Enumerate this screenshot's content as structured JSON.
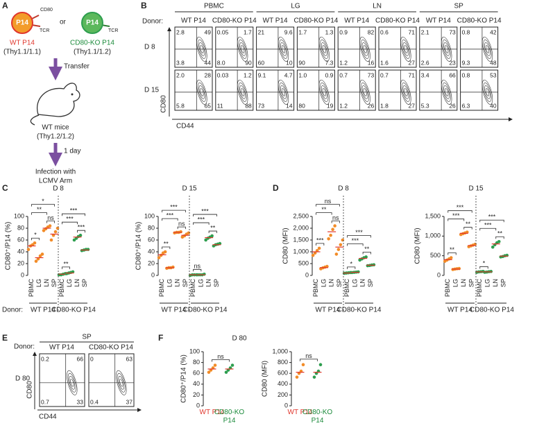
{
  "panel_a": {
    "label": "A",
    "wt_cell": "P14",
    "wt_cd80": "CD80",
    "wt_tcr": "TCR",
    "or": "or",
    "ko_cell": "P14",
    "ko_tcr": "TCR",
    "wt_name": "WT P14",
    "wt_thy": "(Thy1.1/1.1)",
    "ko_name": "CD80-KO P14",
    "ko_thy": "(Thy1.1/1.2)",
    "step1": "Transfer",
    "host": "WT mice",
    "host_thy": "(Thy1.2/1.2)",
    "step2": "1 day",
    "infection": [
      "Infection with",
      "LCMV Arm"
    ]
  },
  "panel_b": {
    "label": "B",
    "donor_label": "Donor:",
    "x_axis": "CD44",
    "y_axis": "CD80",
    "days": [
      "D 8",
      "D 15"
    ],
    "tissues": [
      "PBMC",
      "LG",
      "LN",
      "SP"
    ],
    "donors": [
      "WT P14",
      "CD80-KO P14"
    ],
    "donor_colors": [
      "#e0362c",
      "#1a8a3a"
    ],
    "quadrants": [
      [
        [
          "2.8",
          "49",
          "3.8",
          "44"
        ],
        [
          "0.05",
          "1.7",
          "8.0",
          "90"
        ],
        [
          "21",
          "9.6",
          "60",
          "10"
        ],
        [
          "1.7",
          "1.3",
          "90",
          "7.3"
        ],
        [
          "0.9",
          "82",
          "1.2",
          "16"
        ],
        [
          "0.6",
          "71",
          "1.6",
          "27"
        ],
        [
          "2.1",
          "73",
          "2.6",
          "23"
        ],
        [
          "0.8",
          "42",
          "9.3",
          "48"
        ]
      ],
      [
        [
          "2.0",
          "28",
          "5.8",
          "65"
        ],
        [
          "0.03",
          "1.2",
          "11",
          "88"
        ],
        [
          "9.1",
          "4.7",
          "73",
          "14"
        ],
        [
          "1.0",
          "0.9",
          "80",
          "19"
        ],
        [
          "0.7",
          "73",
          "1.2",
          "26"
        ],
        [
          "0.7",
          "71",
          "1.8",
          "27"
        ],
        [
          "3.4",
          "66",
          "5.3",
          "26"
        ],
        [
          "0.8",
          "53",
          "6.3",
          "40"
        ]
      ]
    ]
  },
  "panel_labels": {
    "c": "C",
    "d": "D",
    "f": "F"
  },
  "panel_cd": {
    "donor_label": "Donor:"
  },
  "chart_data": [
    {
      "type": "dot",
      "title": "D 8",
      "y_label": "CD80⁺/P14 (%)",
      "ylim": [
        0,
        100
      ],
      "yticks": [
        0,
        20,
        40,
        60,
        80,
        100
      ],
      "categories": [
        "PBMC",
        "LG",
        "LN",
        "SP"
      ],
      "series": [
        {
          "name": "WT P14",
          "color": "#f28c28",
          "text_color": "#e0362c",
          "values": [
            50,
            30,
            80,
            70
          ],
          "points": [
            [
              44,
              50,
              52,
              55
            ],
            [
              24,
              28,
              33,
              36
            ],
            [
              76,
              79,
              82,
              84
            ],
            [
              60,
              68,
              74,
              80
            ]
          ],
          "comparisons": [
            "*",
            "**",
            "*",
            "ns"
          ]
        },
        {
          "name": "CD80-KO P14",
          "color": "#2e9e4f",
          "text_color": "#1a8a3a",
          "values": [
            2,
            4,
            65,
            43
          ],
          "points": [
            [
              1,
              1,
              2,
              3
            ],
            [
              3,
              4,
              5,
              6
            ],
            [
              60,
              63,
              66,
              68
            ],
            [
              42,
              43,
              44,
              44
            ]
          ],
          "comparisons": [
            "**",
            "***",
            "***",
            "***"
          ]
        }
      ]
    },
    {
      "type": "dot",
      "title": "D 15",
      "y_label": "CD80⁺/P14 (%)",
      "ylim": [
        0,
        100
      ],
      "yticks": [
        0,
        20,
        40,
        60,
        80,
        100
      ],
      "categories": [
        "PBMC",
        "LG",
        "LN",
        "SP"
      ],
      "series": [
        {
          "name": "WT P14",
          "color": "#f28c28",
          "text_color": "#e0362c",
          "values": [
            35,
            13,
            73,
            68
          ],
          "points": [
            [
              30,
              34,
              38,
              40
            ],
            [
              12,
              13,
              13,
              14
            ],
            [
              72,
              73,
              73,
              74
            ],
            [
              65,
              67,
              70,
              72
            ]
          ],
          "comparisons": [
            "**",
            "***",
            "***",
            "ns"
          ]
        },
        {
          "name": "CD80-KO P14",
          "color": "#2e9e4f",
          "text_color": "#1a8a3a",
          "values": [
            1,
            1,
            64,
            52
          ],
          "points": [
            [
              0,
              1,
              1,
              1
            ],
            [
              1,
              1,
              1,
              2
            ],
            [
              60,
              63,
              65,
              67
            ],
            [
              50,
              52,
              53,
              54
            ]
          ],
          "comparisons": [
            "ns",
            "***",
            "***",
            "**"
          ]
        }
      ]
    },
    {
      "type": "dot",
      "title": "D 8",
      "y_label": "CD80 (MFI)",
      "ylim": [
        0,
        2500
      ],
      "yticks": [
        0,
        500,
        {
          "value": 1000,
          "label": "1,000"
        },
        {
          "value": 1500,
          "label": "1,500"
        },
        {
          "value": 2000,
          "label": "2,000"
        },
        {
          "value": 2500,
          "label": "2,500"
        }
      ],
      "categories": [
        "PBMC",
        "LG",
        "LN",
        "SP"
      ],
      "series": [
        {
          "name": "WT P14",
          "color": "#f28c28",
          "text_color": "#e0362c",
          "values": [
            1000,
            330,
            1850,
            1200
          ],
          "points": [
            [
              850,
              950,
              1050,
              1150
            ],
            [
              280,
              320,
              350,
              380
            ],
            [
              1550,
              1700,
              1950,
              2100
            ],
            [
              900,
              1100,
              1300,
              1500
            ]
          ],
          "comparisons": [
            "***",
            "**",
            "ns",
            "ns"
          ]
        },
        {
          "name": "CD80-KO P14",
          "color": "#2e9e4f",
          "text_color": "#1a8a3a",
          "values": [
            100,
            130,
            720,
            430
          ],
          "points": [
            [
              90,
              100,
              110,
              120
            ],
            [
              120,
              130,
              140,
              150
            ],
            [
              650,
              700,
              750,
              780
            ],
            [
              410,
              420,
              440,
              450
            ]
          ],
          "comparisons": [
            "*",
            "***",
            "***",
            "**"
          ]
        }
      ]
    },
    {
      "type": "dot",
      "title": "D 15",
      "y_label": "CD80 (MFI)",
      "ylim": [
        0,
        1500
      ],
      "yticks": [
        0,
        500,
        {
          "value": 1000,
          "label": "1,000"
        },
        {
          "value": 1500,
          "label": "1,500"
        }
      ],
      "categories": [
        "PBMC",
        "LG",
        "LN",
        "SP"
      ],
      "series": [
        {
          "name": "WT P14",
          "color": "#f28c28",
          "text_color": "#e0362c",
          "values": [
            400,
            160,
            1070,
            760
          ],
          "points": [
            [
              360,
              390,
              420,
              450
            ],
            [
              150,
              160,
              170,
              175
            ],
            [
              1040,
              1060,
              1080,
              1100
            ],
            [
              730,
              750,
              770,
              790
            ]
          ],
          "comparisons": [
            "**",
            "***",
            "***",
            "**"
          ]
        },
        {
          "name": "CD80-KO P14",
          "color": "#2e9e4f",
          "text_color": "#1a8a3a",
          "values": [
            90,
            90,
            800,
            490
          ],
          "points": [
            [
              80,
              90,
              95,
              100
            ],
            [
              80,
              85,
              95,
              100
            ],
            [
              720,
              780,
              830,
              860
            ],
            [
              470,
              480,
              500,
              510
            ]
          ],
          "comparisons": [
            "*",
            "***",
            "***",
            "**"
          ]
        }
      ]
    },
    {
      "type": "dot",
      "y_label": "CD80⁺/P14 (%)",
      "ylim": [
        0,
        100
      ],
      "yticks": [
        0,
        20,
        40,
        60,
        80,
        100
      ],
      "categories": [
        "WT P14",
        "CD80-KO P14"
      ],
      "colors": [
        "#f28c28",
        "#2e9e4f"
      ],
      "text_colors": [
        "#e0362c",
        "#1a8a3a"
      ],
      "values": [
        68,
        63
      ],
      "points": [
        [
          62,
          66,
          70,
          75
        ],
        [
          56,
          62,
          65,
          70
        ]
      ],
      "comparisons": [
        "ns"
      ]
    },
    {
      "type": "dot",
      "y_label": "CD80 (MFI)",
      "ylim": [
        0,
        1000
      ],
      "yticks": [
        0,
        200,
        400,
        600,
        800,
        {
          "value": 1000,
          "label": "1,000"
        }
      ],
      "categories": [
        "WT P14",
        "CD80-KO P14"
      ],
      "colors": [
        "#f28c28",
        "#2e9e4f"
      ],
      "text_colors": [
        "#e0362c",
        "#1a8a3a"
      ],
      "values": [
        620,
        490
      ],
      "points": [
        [
          530,
          600,
          640,
          760
        ],
        [
          450,
          480,
          500,
          530
        ]
      ],
      "comparisons": [
        "ns"
      ]
    }
  ],
  "panel_e": {
    "label": "E",
    "donor_label": "Donor:",
    "tissue": "SP",
    "donors": [
      "WT P14",
      "CD80-KO P14"
    ],
    "donor_colors": [
      "#e0362c",
      "#1a8a3a"
    ],
    "day": "D 80",
    "x_axis": "CD44",
    "y_axis": "CD80",
    "quadrants": [
      [
        "0.2",
        "66",
        "0.7",
        "33"
      ],
      [
        "0",
        "63",
        "0.4",
        "37"
      ]
    ]
  },
  "panel_f": {
    "title": "D 80"
  }
}
